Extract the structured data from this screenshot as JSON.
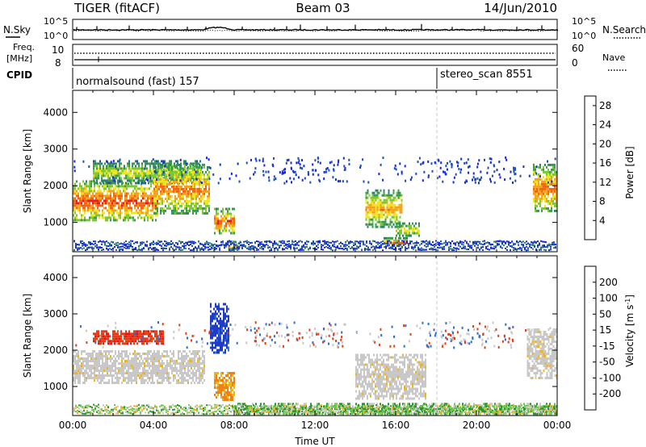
{
  "header": {
    "radar": "TIGER (fitACF)",
    "beam": "Beam 03",
    "date": "14/Jun/2010"
  },
  "top_panels": {
    "nsky_label": "N.Sky",
    "nsky_ticks": [
      "10^5",
      "10^0"
    ],
    "nsearch_label": "N.Search",
    "nsearch_ticks": [
      "10^5",
      "10^0"
    ],
    "freq_label_1": "Freq.",
    "freq_label_2": "[MHz]",
    "freq_ticks": [
      "10",
      "8"
    ],
    "nave_label": "Nave",
    "nave_ticks": [
      "60",
      "0"
    ],
    "cpid_label": "CPID",
    "cpid_entries": [
      {
        "text": "normalsound (fast) 157"
      },
      {
        "text": "stereo_scan 8551"
      }
    ]
  },
  "chart_data": [
    {
      "type": "heatmap",
      "name": "power",
      "ylabel": "Slant Range [km]",
      "xlabel": "",
      "xlim": [
        "00:00",
        "24:00"
      ],
      "ylim": [
        200,
        4600
      ],
      "y_ticks": [
        "4000",
        "3000",
        "2000",
        "1000"
      ],
      "colorbar": {
        "label": "Power [dB]",
        "ticks": [
          "28",
          "24",
          "20",
          "16",
          "12",
          "8",
          "4"
        ],
        "range": [
          0,
          30
        ],
        "colors": [
          "#1428e0",
          "#1e50b4",
          "#2f7f70",
          "#3a9a4e",
          "#7cc832",
          "#f0e41e",
          "#f5a01e",
          "#f06414",
          "#e61e1e"
        ]
      },
      "regions": [
        {
          "label": "strong early echo band",
          "t_start": 0.0,
          "t_end": 4.2,
          "r_low": 1050,
          "r_high": 2150,
          "value_db": 27
        },
        {
          "label": "upper early echo band",
          "t_start": 1.0,
          "t_end": 6.3,
          "r_low": 2100,
          "r_high": 2700,
          "value_db": 18
        },
        {
          "label": "morning band",
          "t_start": 4.0,
          "t_end": 6.8,
          "r_low": 1250,
          "r_high": 2600,
          "value_db": 24
        },
        {
          "label": "dawn patch",
          "t_start": 7.0,
          "t_end": 8.0,
          "r_low": 700,
          "r_high": 1400,
          "value_db": 26
        },
        {
          "label": "near-range ground scatter",
          "t_start": 7.7,
          "t_end": 8.3,
          "r_low": 280,
          "r_high": 500,
          "value_db": 24
        },
        {
          "label": "afternoon arc",
          "t_start": 14.5,
          "t_end": 16.3,
          "r_low": 900,
          "r_high": 1900,
          "value_db": 22
        },
        {
          "label": "afternoon arc 2",
          "t_start": 16.0,
          "t_end": 17.2,
          "r_low": 650,
          "r_high": 1000,
          "value_db": 20
        },
        {
          "label": "late near-range",
          "t_start": 15.4,
          "t_end": 16.6,
          "r_low": 350,
          "r_high": 600,
          "value_db": 25
        },
        {
          "label": "late evening band",
          "t_start": 22.8,
          "t_end": 24.0,
          "r_low": 1300,
          "r_high": 2600,
          "value_db": 25
        }
      ]
    },
    {
      "type": "heatmap",
      "name": "velocity",
      "ylabel": "Slant Range [km]",
      "xlabel": "Time UT",
      "xlim": [
        "00:00",
        "24:00"
      ],
      "ylim": [
        200,
        4600
      ],
      "x_ticks": [
        "00:00",
        "04:00",
        "08:00",
        "12:00",
        "16:00",
        "20:00",
        "00:00"
      ],
      "y_ticks": [
        "4000",
        "3000",
        "2000",
        "1000"
      ],
      "colorbar": {
        "label": "Velocity [m s^-1]",
        "ticks": [
          "200",
          "100",
          "50",
          "15",
          "-15",
          "-50",
          "-100",
          "-200"
        ],
        "colors": [
          "#1e3cc8",
          "#2c6ed2",
          "#2a9632",
          "#78c850",
          "#c8c8c8",
          "#f0b41e",
          "#f08214",
          "#e63c14",
          "#e61414"
        ]
      },
      "regions": [
        {
          "label": "ground scatter band",
          "t_start": 0.0,
          "t_end": 6.5,
          "r_low": 1100,
          "r_high": 2000,
          "category": "ground-scatter"
        },
        {
          "label": "negative velocity patch",
          "t_start": 1.0,
          "t_end": 4.5,
          "r_low": 2150,
          "r_high": 2550,
          "velocity": -180
        },
        {
          "label": "positive velocity streak",
          "t_start": 6.8,
          "t_end": 7.7,
          "r_low": 1900,
          "r_high": 3300,
          "velocity": 180
        },
        {
          "label": "orange patch",
          "t_start": 7.0,
          "t_end": 8.0,
          "r_low": 600,
          "r_high": 1400,
          "velocity": -60
        },
        {
          "label": "afternoon ground scatter",
          "t_start": 14.0,
          "t_end": 17.5,
          "r_low": 650,
          "r_high": 1900,
          "category": "ground-scatter"
        },
        {
          "label": "near range mixed",
          "t_start": 8.0,
          "t_end": 24.0,
          "r_low": 250,
          "r_high": 550,
          "velocity": 30
        },
        {
          "label": "late ground scatter",
          "t_start": 22.5,
          "t_end": 24.0,
          "r_low": 1200,
          "r_high": 2600,
          "category": "ground-scatter"
        }
      ]
    }
  ]
}
